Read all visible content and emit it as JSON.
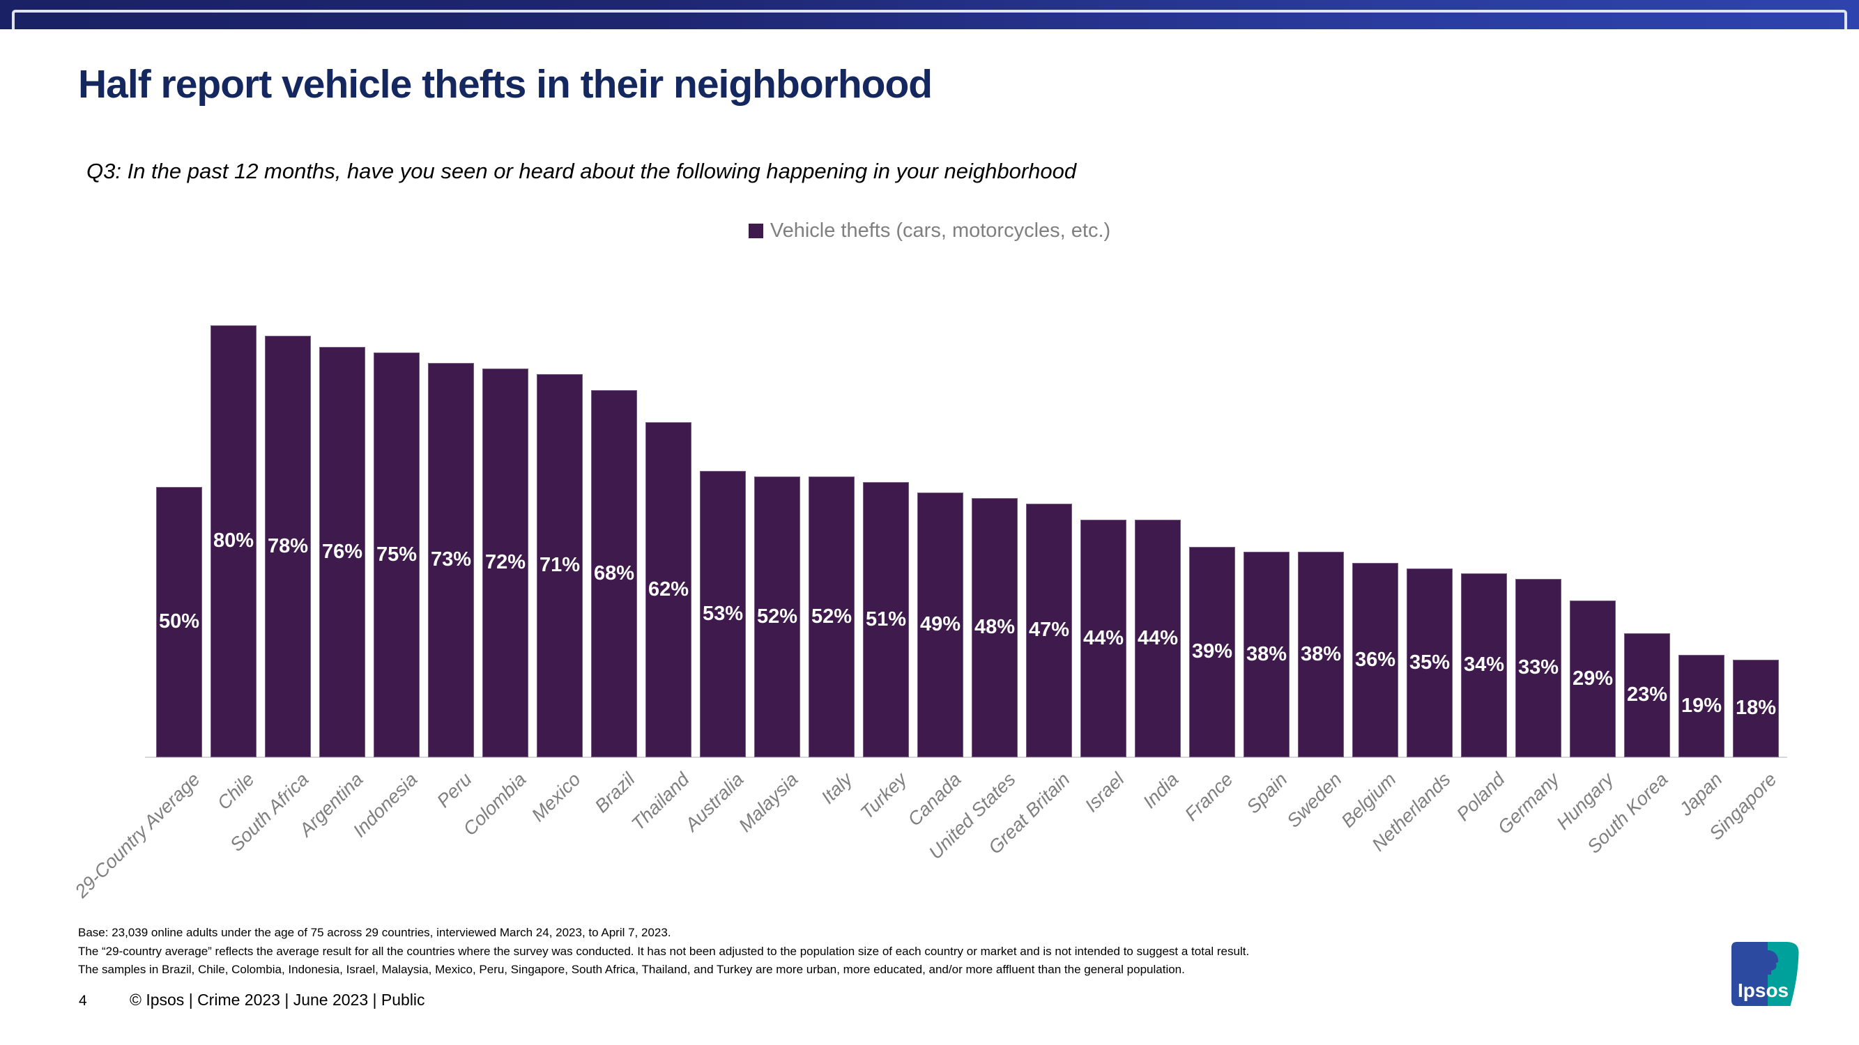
{
  "slide": {
    "title": "Half report vehicle thefts in their neighborhood",
    "subtitle": "Q3: In the past 12 months, have you seen or heard about the following happening in your neighborhood",
    "footnotes": [
      "Base: 23,039 online adults under the age of 75 across 29 countries, interviewed March 24, 2023, to April 7, 2023.",
      "The “29-country average” reflects the average result for all the countries where the survey was conducted. It has not been adjusted to the population size of each country or market and is not intended to suggest a total result.",
      "The samples in Brazil, Chile, Colombia, Indonesia, Israel, Malaysia, Mexico, Peru, Singapore, South Africa, Thailand, and Turkey are more urban, more educated, and/or more affluent than the general population."
    ],
    "page_number": "4",
    "footer": "© Ipsos | Crime 2023 | June 2023 | Public",
    "logo_text": "Ipsos"
  },
  "legend": {
    "label": "Vehicle thefts (cars, motorcycles, etc.)"
  },
  "colors": {
    "bar": "#3F1B4D",
    "title": "#14275F",
    "axis_label": "#7F7F7F",
    "band_left": "#1A2164",
    "band_right": "#2E43AD",
    "baseline": "#D8D8D8",
    "logo_blue": "#2B4AA0",
    "logo_teal": "#00A09B"
  },
  "chart_data": {
    "type": "bar",
    "title": "",
    "legend_entries": [
      "Vehicle thefts (cars, motorcycles, etc.)"
    ],
    "legend_position": "top-center",
    "categories": [
      "29-Country Average",
      "Chile",
      "South Africa",
      "Argentina",
      "Indonesia",
      "Peru",
      "Colombia",
      "Mexico",
      "Brazil",
      "Thailand",
      "Australia",
      "Malaysia",
      "Italy",
      "Turkey",
      "Canada",
      "United States",
      "Great Britain",
      "Israel",
      "India",
      "France",
      "Spain",
      "Sweden",
      "Belgium",
      "Netherlands",
      "Poland",
      "Germany",
      "Hungary",
      "South Korea",
      "Japan",
      "Singapore"
    ],
    "values": [
      50,
      80,
      78,
      76,
      75,
      73,
      72,
      71,
      68,
      62,
      53,
      52,
      52,
      51,
      49,
      48,
      47,
      44,
      44,
      39,
      38,
      38,
      36,
      35,
      34,
      33,
      29,
      23,
      19,
      18
    ],
    "value_suffix": "%",
    "xlabel": "",
    "ylabel": "",
    "ylim": [
      0,
      100
    ],
    "grid": false,
    "bar_color": "#3F1B4D",
    "data_label_position": "inside-center",
    "data_label_color": "#FFFFFF",
    "category_label_rotation": -45
  }
}
